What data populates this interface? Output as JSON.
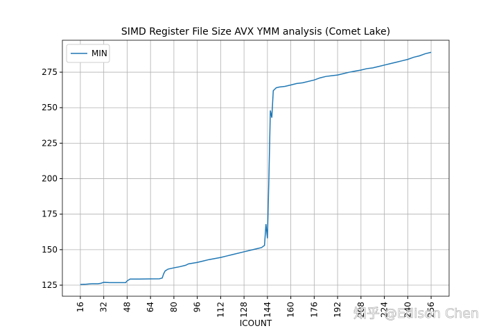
{
  "chart_data": {
    "type": "line",
    "title": "SIMD Register File Size AVX YMM analysis (Comet Lake)",
    "x_label": "ICOUNT",
    "watermark": "知乎 @Edison Chen",
    "x": [
      16,
      20,
      24,
      28,
      30,
      32,
      36,
      40,
      44,
      47,
      48,
      50,
      56,
      64,
      70,
      72,
      73,
      74,
      76,
      80,
      84,
      88,
      90,
      96,
      100,
      104,
      112,
      116,
      120,
      128,
      132,
      136,
      140,
      142,
      143,
      144,
      145,
      146,
      147,
      148,
      149,
      150,
      152,
      156,
      160,
      164,
      168,
      176,
      180,
      184,
      188,
      192,
      196,
      200,
      208,
      212,
      216,
      220,
      224,
      228,
      232,
      236,
      240,
      244,
      248,
      252,
      256
    ],
    "series": [
      {
        "name": "MIN",
        "color": "#1f77b4",
        "values": [
          125.5,
          125.7,
          126,
          126,
          126.3,
          127,
          126.8,
          126.8,
          126.8,
          126.8,
          128,
          129.3,
          129.3,
          129.4,
          129.5,
          130,
          133,
          135,
          136.3,
          137.2,
          138,
          139,
          140,
          141,
          142,
          143,
          144.5,
          145.5,
          146.5,
          148.5,
          149.5,
          150.5,
          151.5,
          153,
          168,
          158,
          200,
          248,
          243,
          262,
          263,
          264,
          264.5,
          265,
          266,
          267,
          267.5,
          269.5,
          271,
          272,
          272.5,
          273,
          274,
          275,
          276.5,
          277.5,
          278,
          279,
          280,
          281,
          282,
          283,
          284,
          285.5,
          286.5,
          288,
          289
        ]
      }
    ],
    "xlim": [
      3.7,
      268.3
    ],
    "ylim": [
      117.2,
      297.5
    ],
    "xticks": [
      16,
      32,
      48,
      64,
      80,
      96,
      112,
      128,
      144,
      160,
      176,
      192,
      208,
      224,
      240,
      256
    ],
    "yticks": [
      125,
      150,
      175,
      200,
      225,
      250,
      275
    ],
    "grid": true,
    "legend": "upper left"
  }
}
